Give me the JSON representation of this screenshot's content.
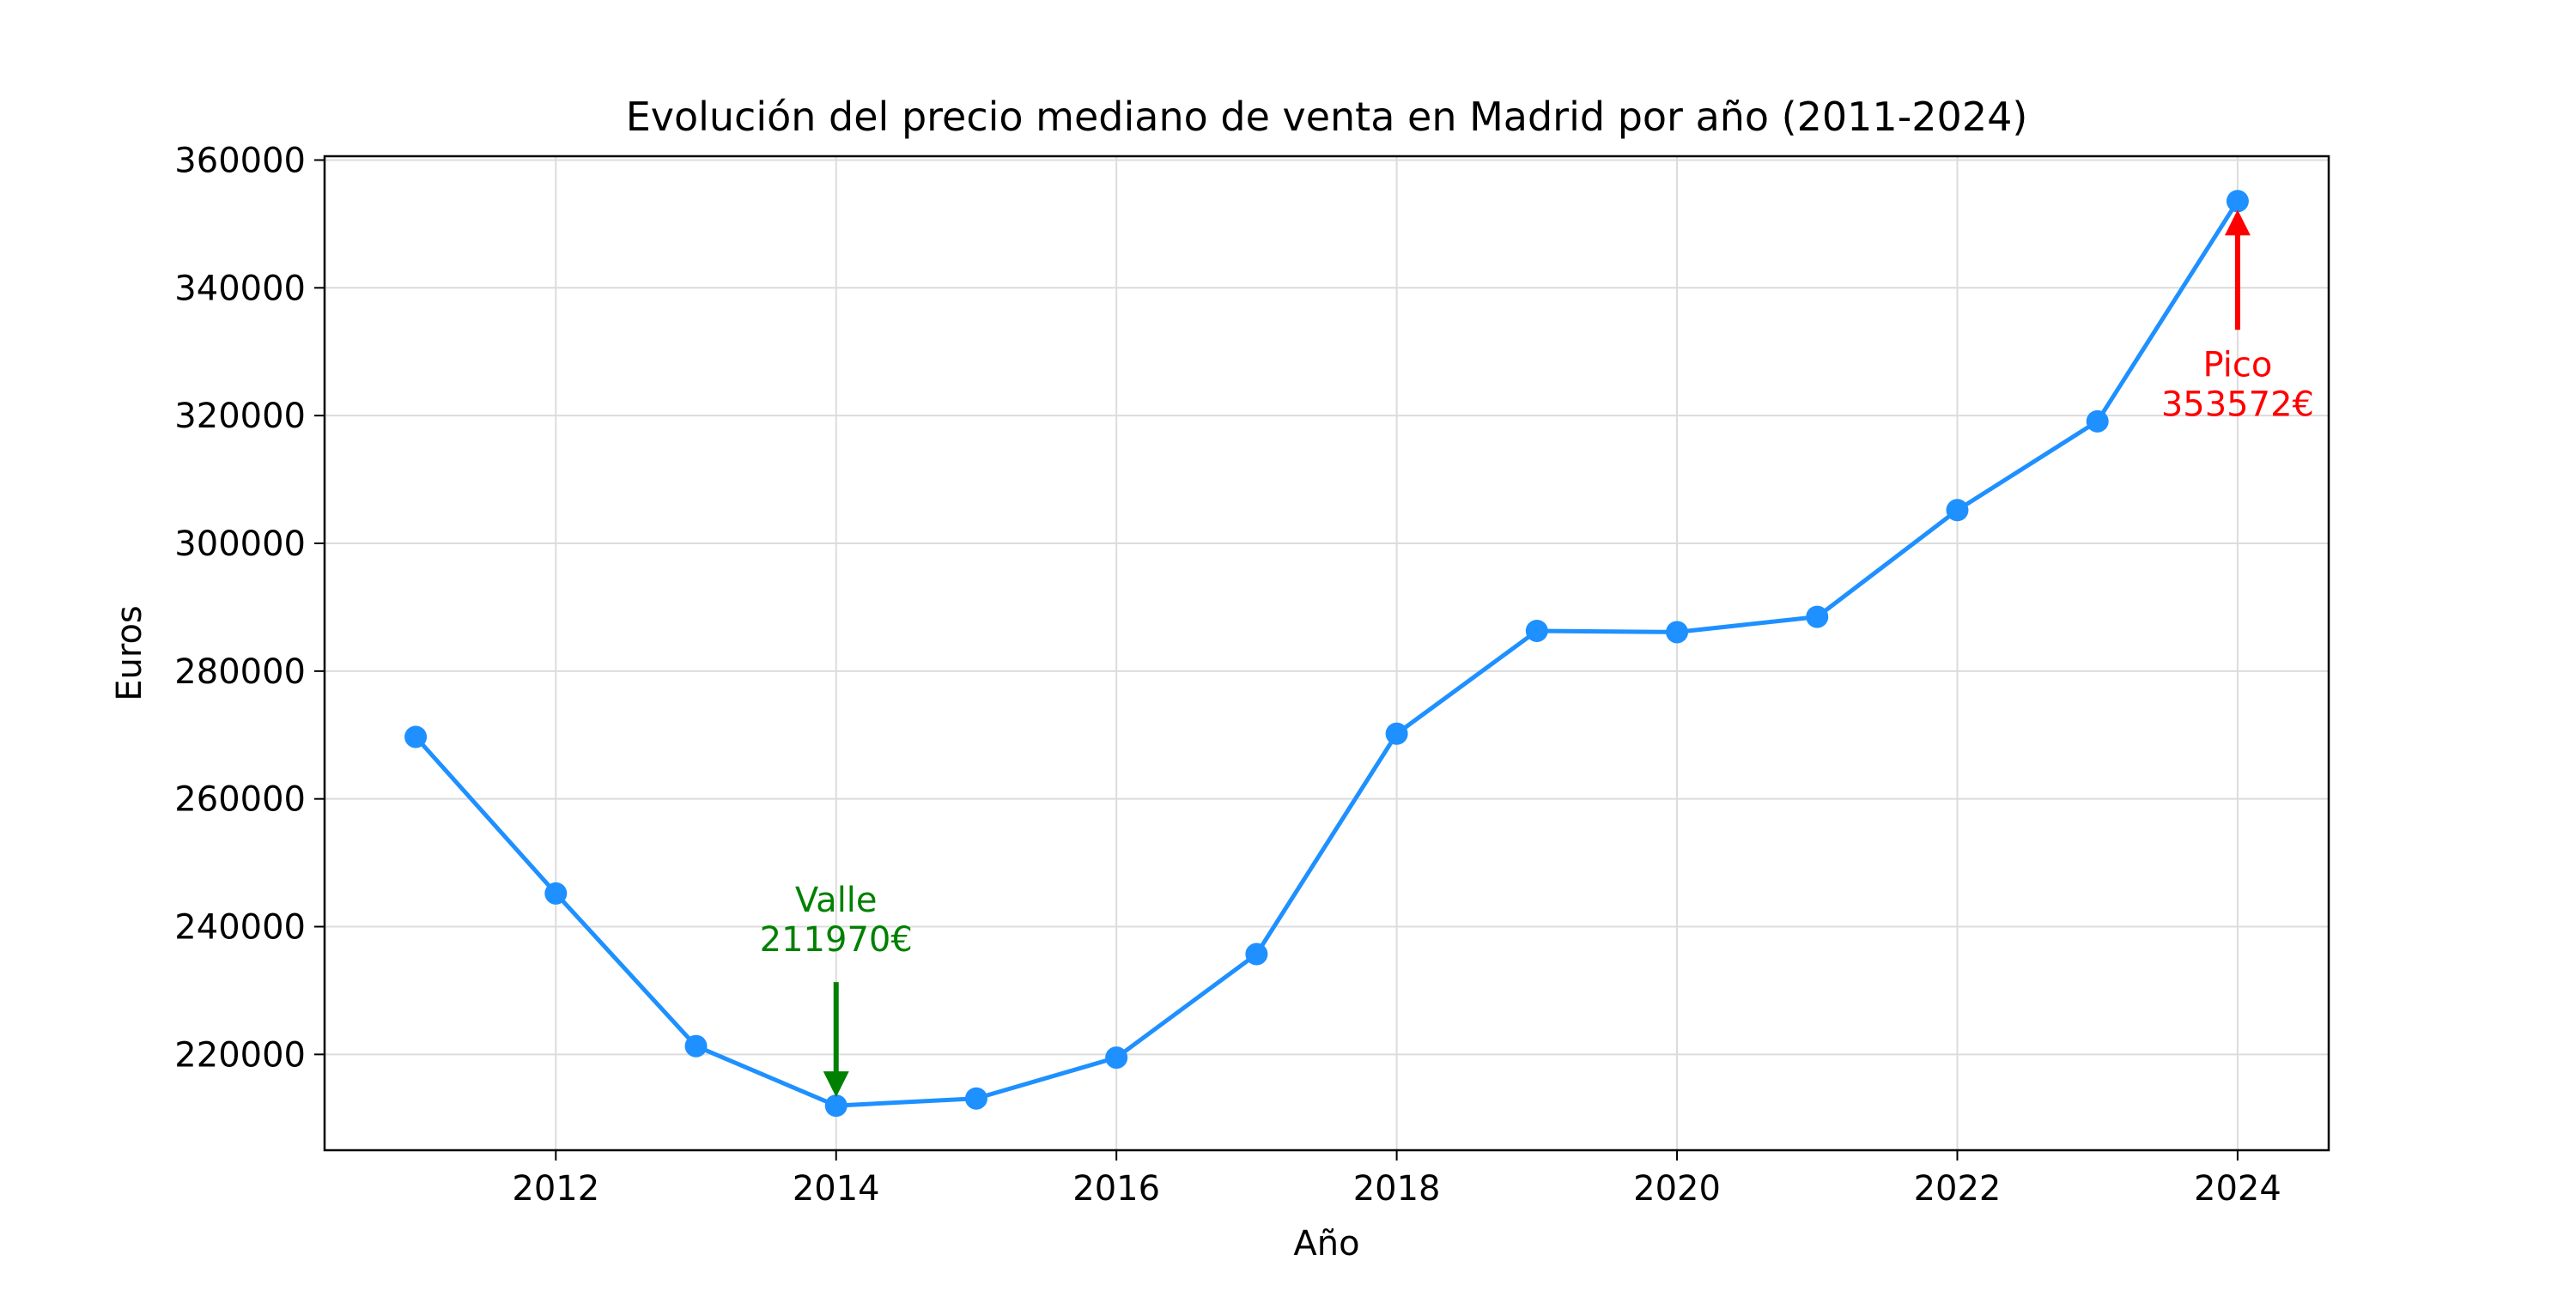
{
  "chart_data": {
    "type": "line",
    "title": "Evolución del precio mediano de venta en Madrid por año (2011-2024)",
    "xlabel": "Año",
    "ylabel": "Euros",
    "xlim": [
      2010.35,
      2024.65
    ],
    "ylim": [
      205000,
      360600
    ],
    "x_ticks": [
      2012,
      2014,
      2016,
      2018,
      2020,
      2022,
      2024
    ],
    "y_ticks": [
      220000,
      240000,
      260000,
      280000,
      300000,
      320000,
      340000,
      360000
    ],
    "grid": true,
    "series": [
      {
        "x": [
          2011,
          2012,
          2013,
          2014,
          2015,
          2016,
          2017,
          2018,
          2019,
          2020,
          2021,
          2022,
          2023,
          2024
        ],
        "values": [
          269700,
          245200,
          221300,
          211970,
          213100,
          219500,
          235700,
          270200,
          286300,
          286100,
          288500,
          305200,
          319100,
          353572
        ],
        "color": "#1e90ff",
        "marker": "circle"
      }
    ],
    "annotations": [
      {
        "kind": "valley",
        "label": "Valle",
        "value_text": "211970€",
        "x": 2014,
        "y": 211970,
        "color": "#008000"
      },
      {
        "kind": "peak",
        "label": "Pico",
        "value_text": "353572€",
        "x": 2024,
        "y": 353572,
        "color": "#ff0000"
      }
    ]
  }
}
